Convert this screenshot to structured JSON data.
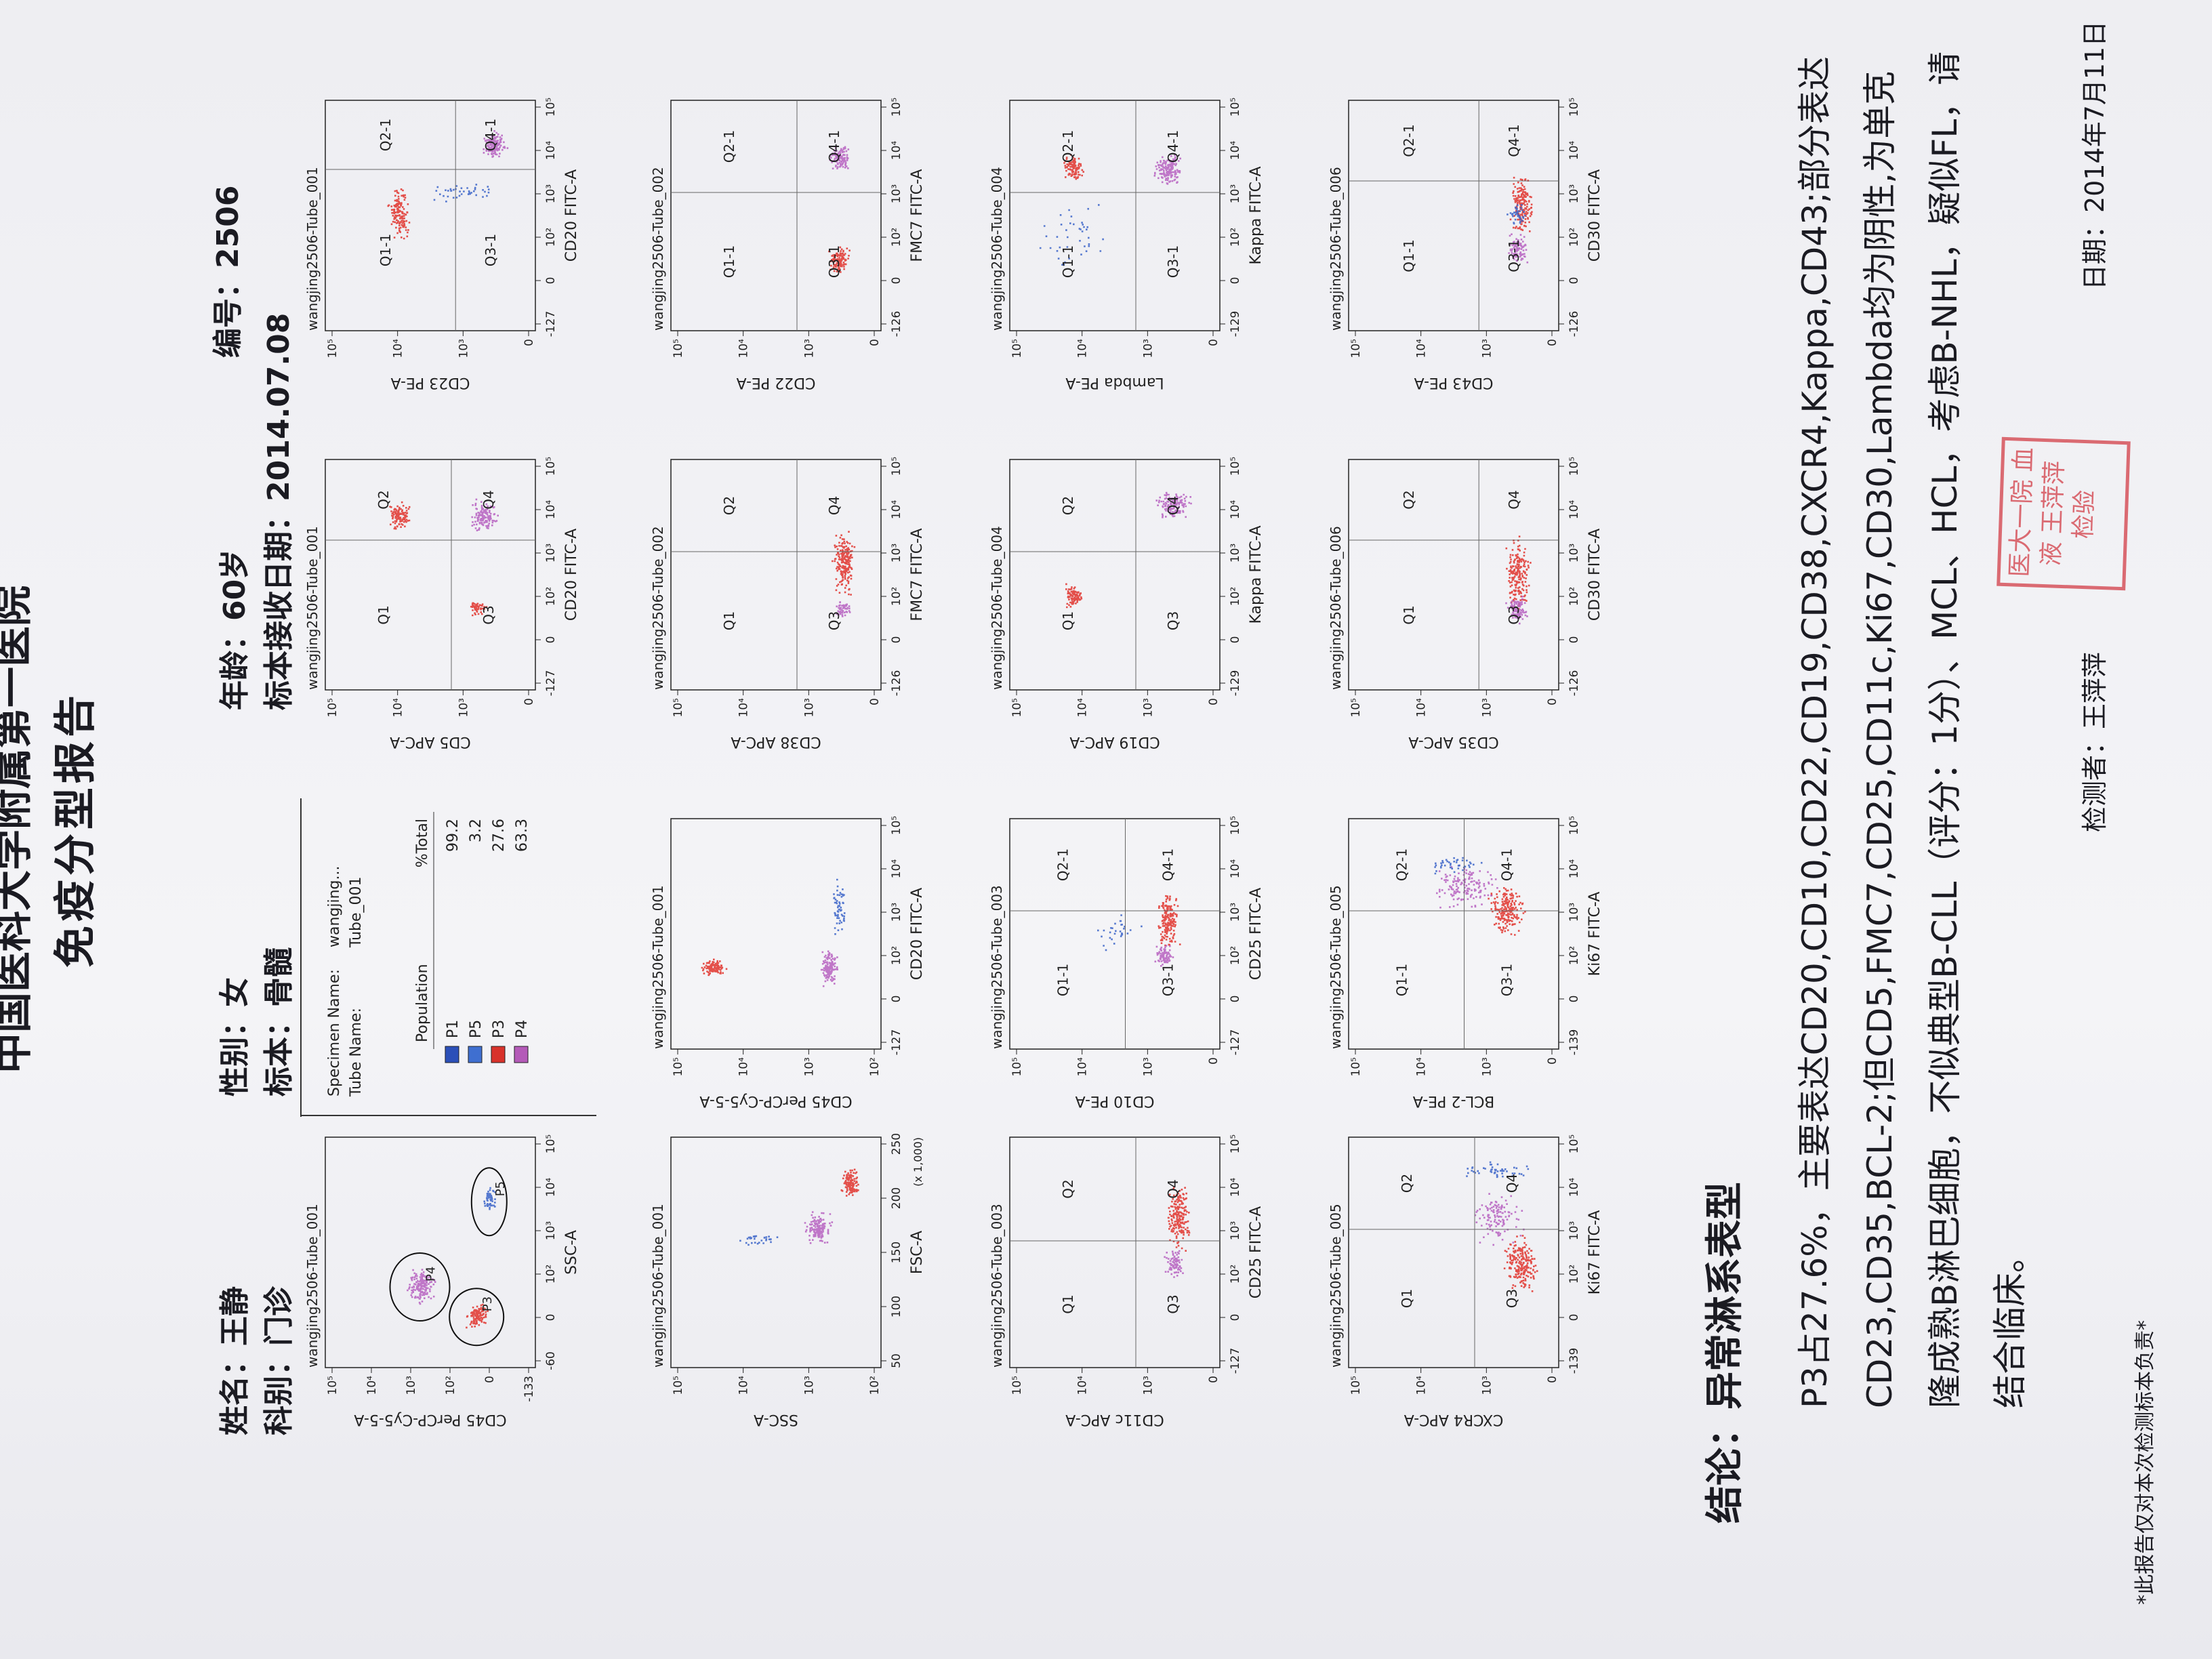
{
  "header": {
    "hospital": "中国医科大学附属第一医院",
    "title": "免疫分型报告"
  },
  "patient": {
    "name": "姓名：王静",
    "dept": "科别：门诊",
    "sex": "性别：女",
    "specimen": "标本：骨髓",
    "age": "年龄：60岁",
    "received": "标本接收日期：2014.07.08",
    "number": "编号：2506"
  },
  "population_table": {
    "specimen_label": "Specimen Name:",
    "specimen": "wangjing...",
    "tube_label": "Tube Name:",
    "tube": "Tube_001",
    "columns": [
      "Population",
      "%Total"
    ],
    "rows": [
      [
        "P1",
        "99.2"
      ],
      [
        "P5",
        "3.2"
      ],
      [
        "P3",
        "27.6"
      ],
      [
        "P4",
        "63.3"
      ]
    ],
    "colors": [
      "#2b4fb8",
      "#3f6fd0",
      "#d8322b",
      "#b45ab8"
    ]
  },
  "plots": [
    {
      "title": "wangjing2506-Tube_001",
      "x_label": "SSC-A",
      "y_label": "CD45 PerCP-Cy5-5-A",
      "x_ticks": [
        "-60",
        "0",
        "10²",
        "10³",
        "10⁴",
        "10⁵"
      ],
      "y_ticks": [
        "-133",
        "0",
        "10²",
        "10³",
        "10⁴",
        "10⁵"
      ],
      "gates": [
        "P3",
        "P4",
        "P5"
      ]
    },
    {
      "title": "wangjing2506-Tube_001",
      "x_label": "CD20 FITC-A",
      "y_label": "CD5 APC-A",
      "x_ticks": [
        "-127",
        "0",
        "10²",
        "10³",
        "10⁴",
        "10⁵"
      ],
      "y_ticks": [
        "0",
        "10³",
        "10⁴",
        "10⁵"
      ],
      "quadrants": [
        "Q1",
        "Q2",
        "Q3",
        "Q4"
      ]
    },
    {
      "title": "wangjing2506-Tube_001",
      "x_label": "CD20 FITC-A",
      "y_label": "CD23 PE-A",
      "x_ticks": [
        "-127",
        "0",
        "10²",
        "10³",
        "10⁴",
        "10⁵"
      ],
      "y_ticks": [
        "0",
        "10³",
        "10⁴",
        "10⁵"
      ],
      "quadrants": [
        "Q1-1",
        "Q2-1",
        "Q3-1",
        "Q4-1"
      ]
    },
    {
      "title": "wangjing2506-Tube_001",
      "x_label": "FSC-A",
      "x_unit": "(x 1,000)",
      "y_label": "SSC-A",
      "x_ticks": [
        "50",
        "100",
        "150",
        "200",
        "250"
      ],
      "y_ticks": [
        "10²",
        "10³",
        "10⁴",
        "10⁵"
      ]
    },
    {
      "title": "wangjing2506-Tube_001",
      "x_label": "CD20 FITC-A",
      "y_label": "CD45 PerCP-Cy5-5-A",
      "x_ticks": [
        "-127",
        "0",
        "10²",
        "10³",
        "10⁴",
        "10⁵"
      ],
      "y_ticks": [
        "10²",
        "10³",
        "10⁴",
        "10⁵"
      ]
    },
    {
      "title": "wangjing2506-Tube_002",
      "x_label": "FMC7 FITC-A",
      "y_label": "CD38 APC-A",
      "x_ticks": [
        "-126",
        "0",
        "10²",
        "10³",
        "10⁴",
        "10⁵"
      ],
      "y_ticks": [
        "0",
        "10³",
        "10⁴",
        "10⁵"
      ],
      "quadrants": [
        "Q1",
        "Q2",
        "Q3",
        "Q4"
      ]
    },
    {
      "title": "wangjing2506-Tube_002",
      "x_label": "FMC7 FITC-A",
      "y_label": "CD22 PE-A",
      "x_ticks": [
        "-126",
        "0",
        "10²",
        "10³",
        "10⁴",
        "10⁵"
      ],
      "y_ticks": [
        "0",
        "10³",
        "10⁴",
        "10⁵"
      ],
      "quadrants": [
        "Q1-1",
        "Q2-1",
        "Q3-1",
        "Q4-1"
      ]
    },
    {
      "title": "wangjing2506-Tube_003",
      "x_label": "CD25 FITC-A",
      "y_label": "CD11c APC-A",
      "x_ticks": [
        "-127",
        "0",
        "10²",
        "10³",
        "10⁴",
        "10⁵"
      ],
      "y_ticks": [
        "0",
        "10³",
        "10⁴",
        "10⁵"
      ],
      "quadrants": [
        "Q1",
        "Q2",
        "Q3",
        "Q4"
      ]
    },
    {
      "title": "wangjing2506-Tube_003",
      "x_label": "CD25 FITC-A",
      "y_label": "CD10 PE-A",
      "x_ticks": [
        "-127",
        "0",
        "10²",
        "10³",
        "10⁴",
        "10⁵"
      ],
      "y_ticks": [
        "0",
        "10³",
        "10⁴",
        "10⁵"
      ],
      "quadrants": [
        "Q1-1",
        "Q2-1",
        "Q3-1",
        "Q4-1"
      ]
    },
    {
      "title": "wangjing2506-Tube_004",
      "x_label": "Kappa FITC-A",
      "y_label": "CD19 APC-A",
      "x_ticks": [
        "-129",
        "0",
        "10²",
        "10³",
        "10⁴",
        "10⁵"
      ],
      "y_ticks": [
        "0",
        "10³",
        "10⁴",
        "10⁵"
      ],
      "quadrants": [
        "Q1",
        "Q2",
        "Q3",
        "Q4"
      ]
    },
    {
      "title": "wangjing2506-Tube_004",
      "x_label": "Kappa FITC-A",
      "y_label": "Lambda PE-A",
      "x_ticks": [
        "-129",
        "0",
        "10²",
        "10³",
        "10⁴",
        "10⁵"
      ],
      "y_ticks": [
        "0",
        "10³",
        "10⁴",
        "10⁵"
      ],
      "quadrants": [
        "Q1-1",
        "Q2-1",
        "Q3-1",
        "Q4-1"
      ]
    },
    {
      "title": "wangjing2506-Tube_005",
      "x_label": "Ki67 FITC-A",
      "y_label": "CXCR4 APC-A",
      "x_ticks": [
        "-139",
        "0",
        "10²",
        "10³",
        "10⁴",
        "10⁵"
      ],
      "y_ticks": [
        "0",
        "10³",
        "10⁴",
        "10⁵"
      ],
      "quadrants": [
        "Q1",
        "Q2",
        "Q3",
        "Q4"
      ]
    },
    {
      "title": "wangjing2506-Tube_005",
      "x_label": "Ki67 FITC-A",
      "y_label": "BCL-2 PE-A",
      "x_ticks": [
        "-139",
        "0",
        "10²",
        "10³",
        "10⁴",
        "10⁵"
      ],
      "y_ticks": [
        "0",
        "10³",
        "10⁴",
        "10⁵"
      ],
      "quadrants": [
        "Q1-1",
        "Q2-1",
        "Q3-1",
        "Q4-1"
      ]
    },
    {
      "title": "wangjing2506-Tube_006",
      "x_label": "CD30 FITC-A",
      "y_label": "CD35 APC-A",
      "x_ticks": [
        "-126",
        "0",
        "10²",
        "10³",
        "10⁴",
        "10⁵"
      ],
      "y_ticks": [
        "0",
        "10³",
        "10⁴",
        "10⁵"
      ],
      "quadrants": [
        "Q1",
        "Q2",
        "Q3",
        "Q4"
      ]
    },
    {
      "title": "wangjing2506-Tube_006",
      "x_label": "CD30 FITC-A",
      "y_label": "CD43 PE-A",
      "x_ticks": [
        "-126",
        "0",
        "10²",
        "10³",
        "10⁴",
        "10⁵"
      ],
      "y_ticks": [
        "0",
        "10³",
        "10⁴",
        "10⁵"
      ],
      "quadrants": [
        "Q1-1",
        "Q2-1",
        "Q3-1",
        "Q4-1"
      ]
    }
  ],
  "conclusion": {
    "heading": "结论：异常淋系表型",
    "text": "P3占27.6%，主要表达CD20,CD10,CD22,CD19,CD38,CXCR4,Kappa,CD43;部分表达CD23,CD35,BCL-2;但CD5,FMC7,CD25,CD11c,Ki67,CD30,Lambda均为阴性,为单克隆成熟B淋巴细胞，不似典型B-CLL（评分：1分）、MCL、HCL，考虑B-NHL，疑似FL，请结合临床。"
  },
  "footer": {
    "note": "*此报告仅对本次检测标本负责*",
    "tester": "检测者：王萍萍",
    "date": "日期：2014年7月11日",
    "stamp": "医大一院 血液 王萍萍 检验"
  }
}
